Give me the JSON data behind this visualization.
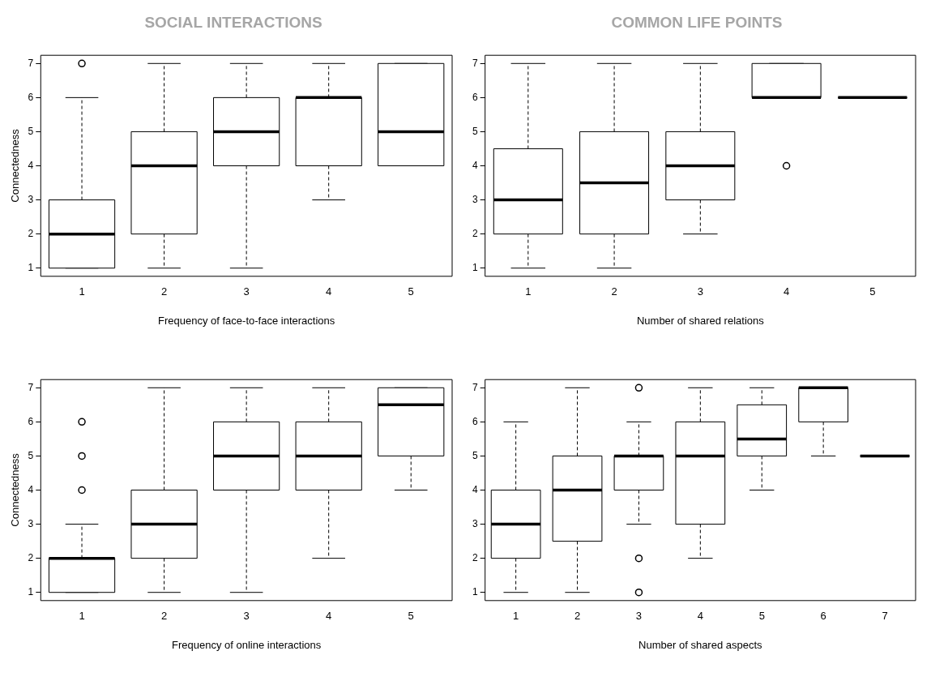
{
  "chart_data": [
    {
      "type": "box",
      "title": "SOCIAL INTERACTIONS",
      "categories": [
        "1",
        "2",
        "3",
        "4",
        "5"
      ],
      "xlabel": "Frequency of face-to-face interactions",
      "ylabel": "Connectedness",
      "ylim": [
        0.76,
        7.24
      ],
      "yticks": [
        1,
        2,
        3,
        4,
        5,
        6,
        7
      ],
      "boxes": [
        {
          "low": 1,
          "q1": 1,
          "median": 2,
          "q3": 3,
          "high": 6,
          "outliers": [
            7
          ]
        },
        {
          "low": 1,
          "q1": 2,
          "median": 4,
          "q3": 5,
          "high": 7
        },
        {
          "low": 1,
          "q1": 4,
          "median": 5,
          "q3": 6,
          "high": 7
        },
        {
          "low": 3,
          "q1": 4,
          "median": 6,
          "q3": 6,
          "high": 7
        },
        {
          "low": 4,
          "q1": 4,
          "median": 5,
          "q3": 7,
          "high": 7
        }
      ]
    },
    {
      "type": "box",
      "title": "COMMON LIFE POINTS",
      "categories": [
        "1",
        "2",
        "3",
        "4",
        "5"
      ],
      "xlabel": "Number of shared relations",
      "ylim": [
        0.76,
        7.24
      ],
      "yticks": [
        1,
        2,
        3,
        4,
        5,
        6,
        7
      ],
      "boxes": [
        {
          "low": 1,
          "q1": 2,
          "median": 3,
          "q3": 4.5,
          "high": 7
        },
        {
          "low": 1,
          "q1": 2,
          "median": 3.5,
          "q3": 5,
          "high": 7
        },
        {
          "low": 2,
          "q1": 3,
          "median": 4,
          "q3": 5,
          "high": 7
        },
        {
          "low": 6,
          "q1": 6,
          "median": 6,
          "q3": 7,
          "high": 7,
          "outliers": [
            4
          ]
        },
        {
          "low": 6,
          "q1": 6,
          "median": 6,
          "q3": 6,
          "high": 6
        }
      ]
    },
    {
      "type": "box",
      "categories": [
        "1",
        "2",
        "3",
        "4",
        "5"
      ],
      "xlabel": "Frequency of online interactions",
      "ylabel": "Connectedness",
      "ylim": [
        0.76,
        7.24
      ],
      "yticks": [
        1,
        2,
        3,
        4,
        5,
        6,
        7
      ],
      "boxes": [
        {
          "low": 1,
          "q1": 1,
          "median": 2,
          "q3": 2,
          "high": 3,
          "outliers": [
            4,
            5,
            6
          ]
        },
        {
          "low": 1,
          "q1": 2,
          "median": 3,
          "q3": 4,
          "high": 7
        },
        {
          "low": 1,
          "q1": 4,
          "median": 5,
          "q3": 6,
          "high": 7
        },
        {
          "low": 2,
          "q1": 4,
          "median": 5,
          "q3": 6,
          "high": 7
        },
        {
          "low": 4,
          "q1": 5,
          "median": 6.5,
          "q3": 7,
          "high": 7
        }
      ]
    },
    {
      "type": "box",
      "categories": [
        "1",
        "2",
        "3",
        "4",
        "5",
        "6",
        "7"
      ],
      "xlabel": "Number of shared aspects",
      "ylim": [
        0.76,
        7.24
      ],
      "yticks": [
        1,
        2,
        3,
        4,
        5,
        6,
        7
      ],
      "boxes": [
        {
          "low": 1,
          "q1": 2,
          "median": 3,
          "q3": 4,
          "high": 6
        },
        {
          "low": 1,
          "q1": 2.5,
          "median": 4,
          "q3": 5,
          "high": 7
        },
        {
          "low": 3,
          "q1": 4,
          "median": 5,
          "q3": 5,
          "high": 6,
          "outliers": [
            7,
            2,
            1
          ]
        },
        {
          "low": 2,
          "q1": 3,
          "median": 5,
          "q3": 6,
          "high": 7
        },
        {
          "low": 4,
          "q1": 5,
          "median": 5.5,
          "q3": 6.5,
          "high": 7
        },
        {
          "low": 5,
          "q1": 6,
          "median": 7,
          "q3": 7,
          "high": 7
        },
        {
          "low": 5,
          "q1": 5,
          "median": 5,
          "q3": 5,
          "high": 5
        }
      ]
    }
  ]
}
